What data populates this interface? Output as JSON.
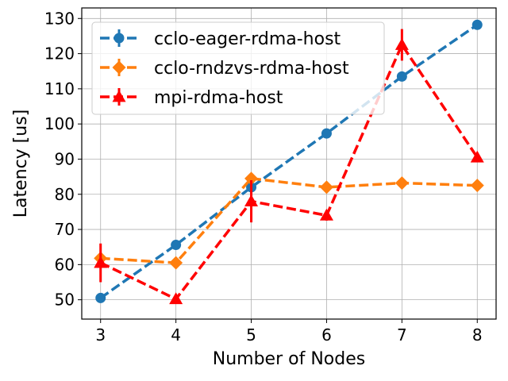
{
  "chart_data": {
    "type": "line",
    "xlabel": "Number of Nodes",
    "ylabel": "Latency [us]",
    "xlim": [
      2.75,
      8.25
    ],
    "ylim": [
      44.5,
      133
    ],
    "x": [
      3,
      4,
      5,
      6,
      7,
      8
    ],
    "xticks": [
      "3",
      "4",
      "5",
      "6",
      "7",
      "8"
    ],
    "yticks": [
      50,
      60,
      70,
      80,
      90,
      100,
      110,
      120,
      130
    ],
    "grid": true,
    "legend_position": "top-left",
    "series": [
      {
        "name": "cclo-eager-rdma-host",
        "color": "#1f77b4",
        "marker": "circle",
        "values": [
          50.5,
          65.6,
          82.0,
          97.3,
          113.5,
          128.2
        ],
        "errors": [
          0.5,
          0.6,
          0.8,
          1.0,
          1.2,
          0.8
        ]
      },
      {
        "name": "cclo-rndzvs-rdma-host",
        "color": "#ff7f0e",
        "marker": "diamond",
        "values": [
          61.8,
          60.5,
          84.5,
          82.0,
          83.2,
          82.5
        ],
        "errors": [
          0.8,
          0.8,
          0.8,
          0.6,
          0.6,
          0.6
        ]
      },
      {
        "name": "mpi-rdma-host",
        "color": "#ff0000",
        "marker": "triangle",
        "values": [
          60.5,
          50.2,
          78.0,
          74.0,
          122.5,
          90.5
        ],
        "errors": [
          5.5,
          0.4,
          6.0,
          1.5,
          4.5,
          0.6
        ]
      }
    ]
  }
}
